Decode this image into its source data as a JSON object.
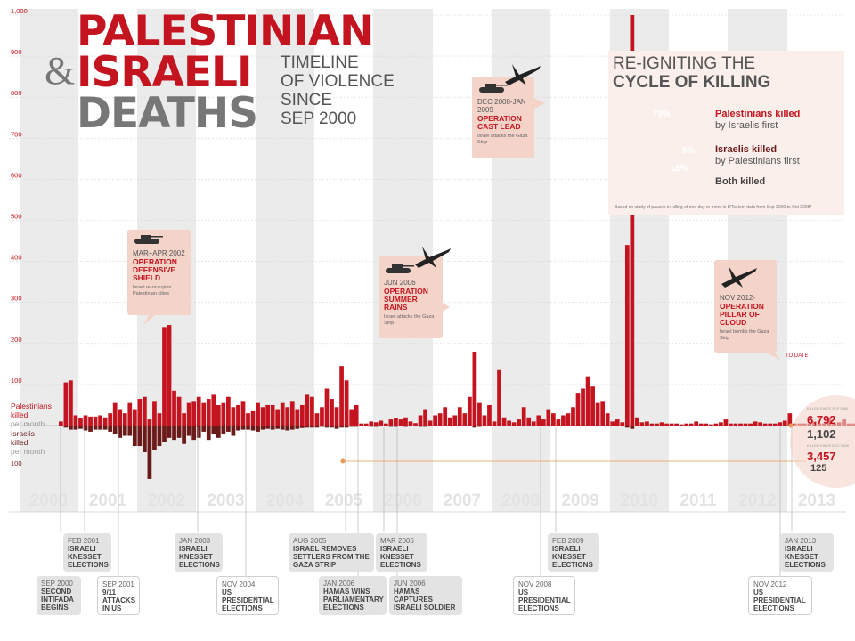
{
  "title": {
    "line1": "PALESTINIAN",
    "amp": "&",
    "line2": "ISRAELI",
    "line3": "DEATHS",
    "subtitle": [
      "TIMELINE",
      "OF VIOLENCE",
      "SINCE",
      "SEP 2000"
    ]
  },
  "colors": {
    "red": "#c4141f",
    "dark_red": "#6b1a1a",
    "grey": "#777777",
    "light_pink": "#f4d3c9",
    "band_grey": "#ebebeb"
  },
  "chart_data": {
    "type": "bar",
    "x_unit": "month",
    "x_start": "2000-09",
    "ylim": [
      0,
      1000
    ],
    "yticks": [
      100,
      200,
      300,
      400,
      500,
      600,
      700,
      800,
      900,
      "1,000"
    ],
    "negative_yticks": [
      100
    ],
    "years": [
      "2000",
      "2001",
      "2002",
      "2003",
      "2004",
      "2005",
      "2006",
      "2007",
      "2008",
      "2009",
      "2010",
      "2011",
      "2012",
      "2013"
    ],
    "series": [
      {
        "name": "Palestinians killed per month",
        "values": [
          10,
          105,
          110,
          25,
          18,
          25,
          22,
          22,
          25,
          20,
          30,
          55,
          40,
          30,
          55,
          40,
          65,
          70,
          15,
          60,
          30,
          240,
          245,
          85,
          70,
          30,
          55,
          60,
          70,
          55,
          65,
          75,
          50,
          55,
          70,
          45,
          50,
          60,
          30,
          35,
          55,
          45,
          50,
          50,
          40,
          55,
          45,
          60,
          40,
          50,
          75,
          70,
          30,
          45,
          90,
          65,
          45,
          145,
          110,
          40,
          50,
          5,
          5,
          10,
          8,
          12,
          5,
          15,
          18,
          15,
          20,
          10,
          6,
          25,
          40,
          12,
          25,
          30,
          45,
          20,
          25,
          45,
          30,
          70,
          180,
          55,
          25,
          50,
          10,
          135,
          20,
          12,
          8,
          15,
          45,
          20,
          10,
          25,
          15,
          40,
          30,
          15,
          25,
          30,
          45,
          80,
          90,
          120,
          95,
          55,
          60,
          30,
          10,
          15,
          8,
          440,
          1000,
          20,
          8,
          10,
          5,
          5,
          8,
          5,
          5,
          5,
          3,
          5,
          5,
          10,
          5,
          5,
          3,
          5,
          8,
          15,
          5,
          5,
          5,
          5,
          5,
          10,
          8,
          5,
          5,
          5,
          8,
          12,
          30,
          5,
          5,
          5,
          5,
          10,
          5,
          5,
          20,
          5,
          8,
          15,
          5,
          5,
          5,
          10,
          5,
          5,
          155,
          10,
          3,
          3,
          3,
          5
        ]
      },
      {
        "name": "Israelis killed per month",
        "values": [
          1,
          5,
          10,
          10,
          8,
          12,
          15,
          10,
          10,
          10,
          15,
          20,
          30,
          25,
          25,
          50,
          50,
          65,
          130,
          60,
          50,
          40,
          30,
          35,
          30,
          45,
          25,
          35,
          30,
          15,
          35,
          20,
          30,
          20,
          15,
          25,
          12,
          10,
          10,
          12,
          15,
          10,
          8,
          10,
          8,
          10,
          12,
          10,
          8,
          6,
          5,
          5,
          5,
          3,
          5,
          5,
          8,
          5,
          5,
          3,
          3,
          2,
          2,
          3,
          3,
          2,
          2,
          3,
          3,
          2,
          3,
          2,
          2,
          3,
          3,
          2,
          2,
          2,
          2,
          2,
          2,
          2,
          2,
          2,
          5,
          3,
          2,
          2,
          2,
          2,
          2,
          2,
          2,
          2,
          2,
          2,
          2,
          2,
          2,
          2,
          2,
          2,
          2,
          2,
          2,
          2,
          2,
          2,
          2,
          2,
          2,
          2,
          2,
          2,
          2,
          5,
          8,
          2,
          2,
          2,
          2,
          2,
          2,
          2,
          2,
          2,
          2,
          2,
          2,
          2,
          2,
          2,
          2,
          2,
          2,
          2,
          2,
          2,
          2,
          2,
          2,
          2,
          2,
          2,
          2,
          2,
          2,
          2,
          2,
          2,
          2,
          2,
          2,
          2,
          2,
          2,
          2,
          2,
          2,
          2,
          2,
          2,
          2,
          2,
          2,
          2,
          2,
          6,
          2,
          2,
          2,
          2,
          2
        ]
      }
    ],
    "side_labels": {
      "pal": [
        "Palestinians",
        "killed",
        "per month"
      ],
      "isr": [
        "Israelis",
        "killed",
        "per month"
      ]
    },
    "to_date": "TO DATE"
  },
  "totals": {
    "pal_caption": "KILLED SINCE SEP 2000",
    "pal_value": "6,792",
    "isr_value": "1,102",
    "isr_caption": "KILLED SINCE DEC 2008",
    "pal2_value": "3,457",
    "isr2_value": "125"
  },
  "callouts": [
    {
      "date": "MAR–APR 2002",
      "name": "OPERATION DEFENSIVE SHIELD",
      "desc": "Israel re-occupies Palestinian cities"
    },
    {
      "date": "JUN 2006",
      "name": "OPERATION SUMMER RAINS",
      "desc": "Israel attacks the Gaza Strip"
    },
    {
      "date": "DEC 2008-JAN 2009",
      "name": "OPERATION CAST LEAD",
      "desc": "Israel attacks the Gaza Strip"
    },
    {
      "date": "NOV 2012-",
      "name": "OPERATION PILLAR OF CLOUD",
      "desc": "Israel bombs the Gaza Strip"
    }
  ],
  "pie": {
    "title1": "RE-IGNITING THE",
    "title2": "CYCLE OF KILLING",
    "slices": [
      {
        "pct": 79,
        "pct_label": "79%",
        "label_bold": "Palestinians killed",
        "label_rest": "by Israelis first",
        "color": "#c4141f"
      },
      {
        "pct": 8,
        "pct_label": "8%",
        "label_bold": "Israelis killed",
        "label_rest": "by Palestinians first",
        "color": "#6b1a1a"
      },
      {
        "pct": 13,
        "pct_label": "13%",
        "label_bold": "Both killed",
        "label_rest": "",
        "color": "#d9d9d9"
      }
    ],
    "note": "Based on study of pauses in killing of one day or more in B'Tselem data from Sep 2000 to Oct 2008*"
  },
  "events": [
    {
      "date": "SEP 2000",
      "text": "SECOND INTIFADA BEGINS"
    },
    {
      "date": "FEB 2001",
      "text": "ISRAELI KNESSET ELECTIONS"
    },
    {
      "date": "SEP 2001",
      "text": "9/11 ATTACKS IN US"
    },
    {
      "date": "JAN 2003",
      "text": "ISRAELI KNESSET ELECTIONS"
    },
    {
      "date": "NOV 2004",
      "text": "US PRESIDENTIAL ELECTIONS"
    },
    {
      "date": "AUG 2005",
      "text": "ISRAEL REMOVES SETTLERS FROM THE GAZA STRIP"
    },
    {
      "date": "JAN 2006",
      "text": "HAMAS WINS PARLIAMENTARY ELECTIONS"
    },
    {
      "date": "MAR 2006",
      "text": "ISRAELI KNESSET ELECTIONS"
    },
    {
      "date": "JUN 2006",
      "text": "HAMAS CAPTURES ISRAELI SOLDIER"
    },
    {
      "date": "NOV 2008",
      "text": "US PRESIDENTIAL ELECTIONS"
    },
    {
      "date": "FEB 2009",
      "text": "ISRAELI KNESSET ELECTIONS"
    },
    {
      "date": "NOV 2012",
      "text": "US PRESIDENTIAL ELECTIONS"
    },
    {
      "date": "JAN 2013",
      "text": "ISRAELI KNESSET ELECTIONS"
    }
  ]
}
